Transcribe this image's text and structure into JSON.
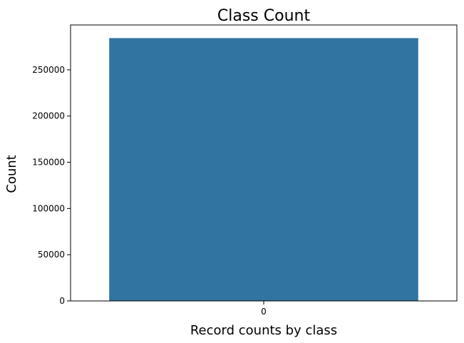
{
  "chart_data": {
    "type": "bar",
    "title": "Class Count",
    "xlabel": "Record counts by class",
    "ylabel": "Count",
    "categories": [
      "0"
    ],
    "values": [
      284315
    ],
    "ylim": [
      0,
      298531
    ],
    "yticks": [
      0,
      50000,
      100000,
      150000,
      200000,
      250000
    ],
    "ytick_labels": [
      "0",
      "50000",
      "100000",
      "150000",
      "200000",
      "250000"
    ],
    "bar_color": "#3274a1",
    "grid": false,
    "legend": "none"
  }
}
